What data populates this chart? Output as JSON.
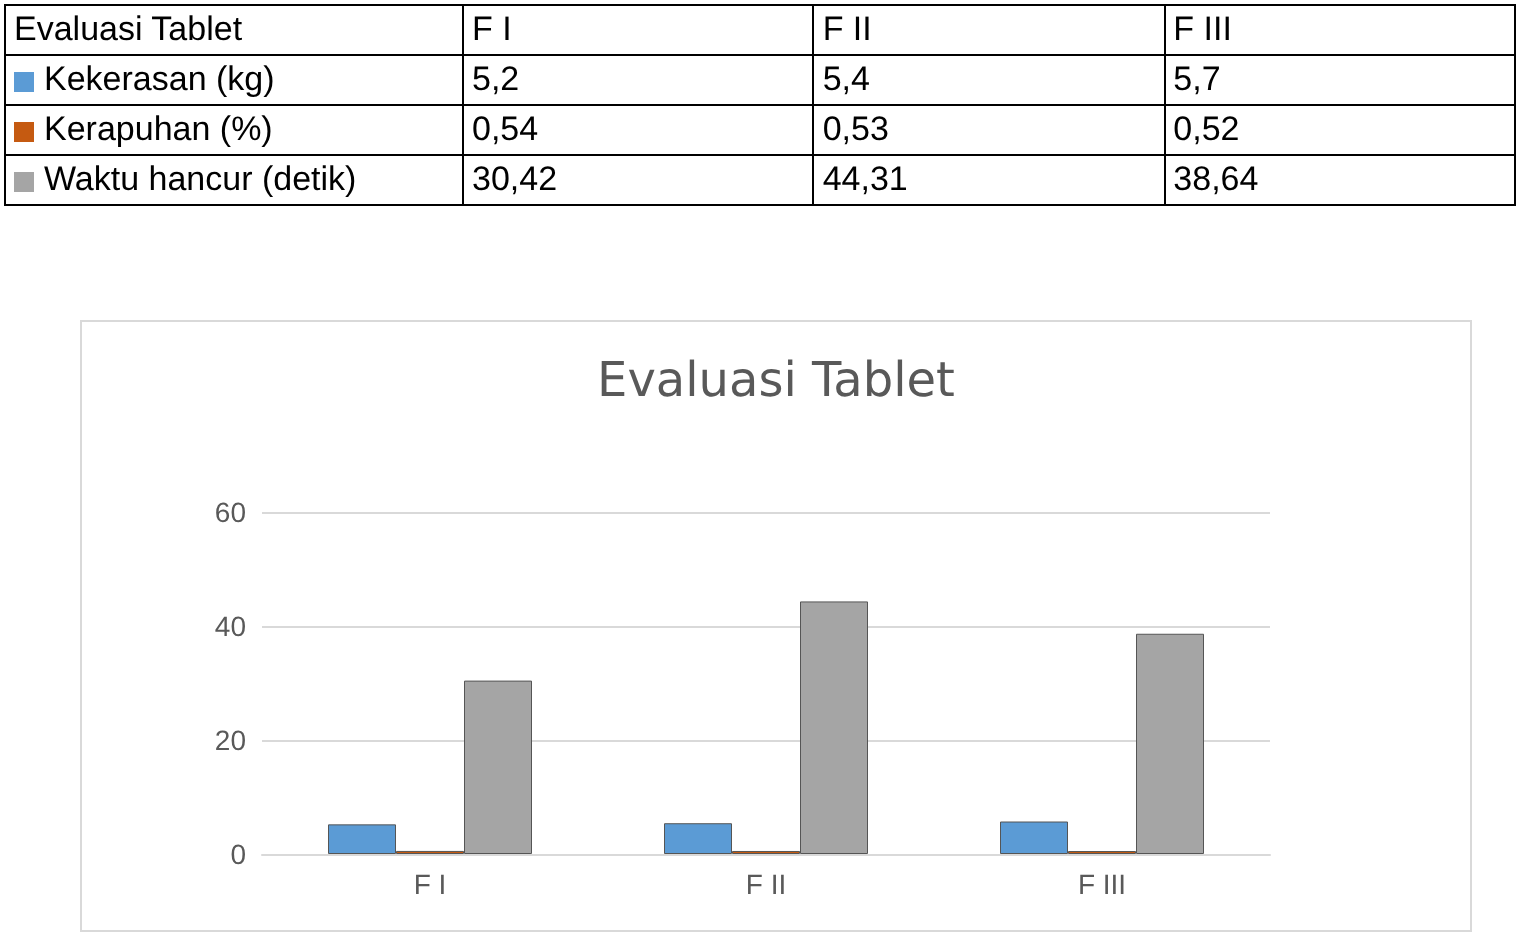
{
  "chart_data": {
    "type": "bar",
    "title": "Evaluasi Tablet",
    "categories": [
      "F I",
      "F II",
      "F III"
    ],
    "series": [
      {
        "name": "Kekerasan (kg)",
        "color": "#5b9bd5",
        "values": [
          5.2,
          5.4,
          5.7
        ],
        "value_labels": [
          "5,2",
          "5,4",
          "5,7"
        ]
      },
      {
        "name": "Kerapuhan  (%)",
        "color": "#c55a11",
        "values": [
          0.54,
          0.53,
          0.52
        ],
        "value_labels": [
          "0,54",
          "0,53",
          "0,52"
        ]
      },
      {
        "name": "Waktu hancur (detik)",
        "color": "#a5a5a5",
        "values": [
          30.42,
          44.31,
          38.64
        ],
        "value_labels": [
          "30,42",
          "44,31",
          "38,64"
        ]
      }
    ],
    "ylim": [
      0,
      60
    ],
    "yticks": [
      0,
      20,
      40,
      60
    ],
    "grid": "y",
    "legend": "top left"
  }
}
